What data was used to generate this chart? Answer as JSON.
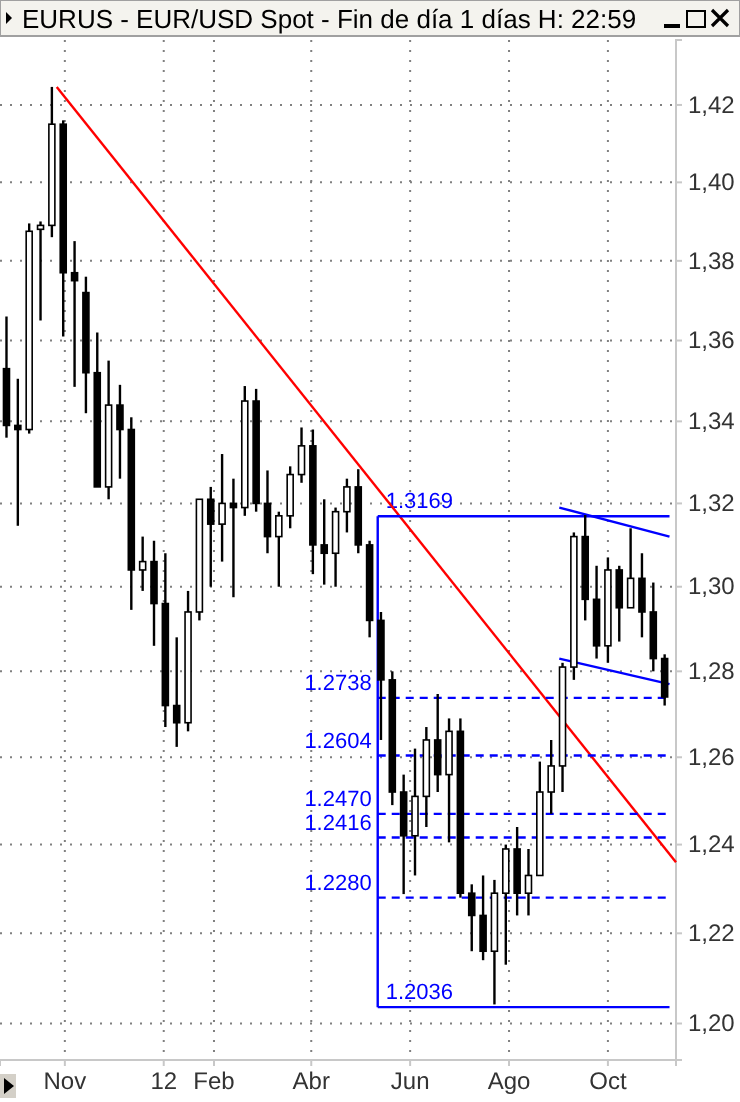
{
  "chart_data": {
    "type": "candlestick",
    "title": "EURUS - EUR/USD Spot - Fin de día 1 días H: 22:59",
    "color": "#000000",
    "x": [
      "2011-09-26",
      "2011-10-03",
      "2011-10-10",
      "2011-10-17",
      "2011-10-24",
      "2011-10-31",
      "2011-11-07",
      "2011-11-14",
      "2011-11-21",
      "2011-11-28",
      "2011-12-05",
      "2011-12-12",
      "2011-12-19",
      "2011-12-26",
      "2012-01-02",
      "2012-01-09",
      "2012-01-16",
      "2012-01-23",
      "2012-01-30",
      "2012-02-06",
      "2012-02-13",
      "2012-02-20",
      "2012-02-27",
      "2012-03-05",
      "2012-03-12",
      "2012-03-19",
      "2012-03-26",
      "2012-04-02",
      "2012-04-09",
      "2012-04-16",
      "2012-04-23",
      "2012-04-30",
      "2012-05-07",
      "2012-05-14",
      "2012-05-21",
      "2012-05-28",
      "2012-06-04",
      "2012-06-11",
      "2012-06-18",
      "2012-06-25",
      "2012-07-02",
      "2012-07-09",
      "2012-07-16",
      "2012-07-23",
      "2012-07-30",
      "2012-08-06",
      "2012-08-13",
      "2012-08-20",
      "2012-08-27",
      "2012-09-03",
      "2012-09-10",
      "2012-09-17",
      "2012-09-24",
      "2012-10-01",
      "2012-10-08",
      "2012-10-15",
      "2012-10-22",
      "2012-10-29",
      "2012-11-05"
    ],
    "ohlc": [
      [
        1.353,
        1.366,
        1.336,
        1.339
      ],
      [
        1.339,
        1.3505,
        1.3146,
        1.338
      ],
      [
        1.338,
        1.3895,
        1.337,
        1.3875
      ],
      [
        1.388,
        1.39,
        1.365,
        1.389
      ],
      [
        1.389,
        1.4247,
        1.386,
        1.415
      ],
      [
        1.415,
        1.416,
        1.361,
        1.377
      ],
      [
        1.377,
        1.385,
        1.3485,
        1.375
      ],
      [
        1.372,
        1.376,
        1.342,
        1.352
      ],
      [
        1.352,
        1.362,
        1.324,
        1.324
      ],
      [
        1.324,
        1.355,
        1.321,
        1.344
      ],
      [
        1.344,
        1.349,
        1.326,
        1.338
      ],
      [
        1.338,
        1.341,
        1.2945,
        1.304
      ],
      [
        1.304,
        1.312,
        1.299,
        1.306
      ],
      [
        1.306,
        1.311,
        1.286,
        1.296
      ],
      [
        1.296,
        1.308,
        1.267,
        1.272
      ],
      [
        1.272,
        1.288,
        1.2624,
        1.268
      ],
      [
        1.268,
        1.299,
        1.266,
        1.294
      ],
      [
        1.294,
        1.321,
        1.292,
        1.321
      ],
      [
        1.321,
        1.324,
        1.3,
        1.315
      ],
      [
        1.315,
        1.332,
        1.306,
        1.32
      ],
      [
        1.32,
        1.326,
        1.2975,
        1.319
      ],
      [
        1.319,
        1.3487,
        1.317,
        1.345
      ],
      [
        1.345,
        1.348,
        1.318,
        1.32
      ],
      [
        1.32,
        1.328,
        1.308,
        1.312
      ],
      [
        1.312,
        1.318,
        1.3,
        1.317
      ],
      [
        1.317,
        1.329,
        1.314,
        1.327
      ],
      [
        1.327,
        1.3385,
        1.325,
        1.334
      ],
      [
        1.334,
        1.338,
        1.303,
        1.31
      ],
      [
        1.31,
        1.321,
        1.3005,
        1.308
      ],
      [
        1.308,
        1.319,
        1.3,
        1.318
      ],
      [
        1.318,
        1.326,
        1.313,
        1.324
      ],
      [
        1.324,
        1.3283,
        1.308,
        1.31
      ],
      [
        1.31,
        1.311,
        1.288,
        1.292
      ],
      [
        1.292,
        1.294,
        1.264,
        1.278
      ],
      [
        1.278,
        1.28,
        1.249,
        1.252
      ],
      [
        1.252,
        1.256,
        1.2288,
        1.242
      ],
      [
        1.242,
        1.262,
        1.233,
        1.251
      ],
      [
        1.251,
        1.267,
        1.244,
        1.264
      ],
      [
        1.264,
        1.2747,
        1.252,
        1.256
      ],
      [
        1.256,
        1.269,
        1.2405,
        1.266
      ],
      [
        1.266,
        1.269,
        1.228,
        1.229
      ],
      [
        1.229,
        1.231,
        1.216,
        1.224
      ],
      [
        1.224,
        1.233,
        1.214,
        1.216
      ],
      [
        1.216,
        1.232,
        1.2042,
        1.229
      ],
      [
        1.229,
        1.24,
        1.213,
        1.239
      ],
      [
        1.239,
        1.244,
        1.224,
        1.229
      ],
      [
        1.229,
        1.239,
        1.224,
        1.233
      ],
      [
        1.233,
        1.259,
        1.233,
        1.252
      ],
      [
        1.252,
        1.264,
        1.247,
        1.258
      ],
      [
        1.258,
        1.282,
        1.252,
        1.281
      ],
      [
        1.281,
        1.313,
        1.278,
        1.312
      ],
      [
        1.312,
        1.3172,
        1.292,
        1.297
      ],
      [
        1.297,
        1.305,
        1.283,
        1.286
      ],
      [
        1.286,
        1.307,
        1.282,
        1.304
      ],
      [
        1.304,
        1.305,
        1.287,
        1.295
      ],
      [
        1.295,
        1.314,
        1.295,
        1.302
      ],
      [
        1.302,
        1.308,
        1.288,
        1.294
      ],
      [
        1.294,
        1.301,
        1.28,
        1.283
      ],
      [
        1.283,
        1.284,
        1.272,
        1.274
      ]
    ],
    "series": [
      {
        "type": "line",
        "color": "#ff0000",
        "line_style": "solid",
        "x": [
          "2011-10-27",
          "2012-11-12"
        ],
        "values": [
          1.4247,
          1.236
        ]
      },
      {
        "type": "line",
        "color": "#0000ff",
        "line_style": "solid",
        "x": [
          "2012-09-01",
          "2012-11-08"
        ],
        "values": [
          1.319,
          1.312
        ]
      },
      {
        "type": "line",
        "color": "#0000ff",
        "line_style": "solid",
        "x": [
          "2012-09-01",
          "2012-11-08"
        ],
        "values": [
          1.283,
          1.277
        ]
      },
      {
        "type": "line",
        "color": "#0000ff",
        "line_style": "solid",
        "x": [
          "2012-05-12",
          "2012-05-12"
        ],
        "values": [
          1.3169,
          1.2036
        ]
      },
      {
        "type": "line",
        "color": "#0000ff",
        "line_style": "solid",
        "x": [
          "2012-05-12",
          "2012-11-08"
        ],
        "values": [
          1.3169,
          1.3169
        ]
      },
      {
        "type": "line",
        "color": "#0000ff",
        "line_style": "dashed",
        "x": [
          "2012-05-12",
          "2012-11-08"
        ],
        "values": [
          1.2738,
          1.2738
        ]
      },
      {
        "type": "line",
        "color": "#0000ff",
        "line_style": "dashed",
        "x": [
          "2012-05-12",
          "2012-11-08"
        ],
        "values": [
          1.2604,
          1.2604
        ]
      },
      {
        "type": "line",
        "color": "#0000ff",
        "line_style": "dashed",
        "x": [
          "2012-05-12",
          "2012-11-08"
        ],
        "values": [
          1.247,
          1.247
        ]
      },
      {
        "type": "line",
        "color": "#0000ff",
        "line_style": "dashed",
        "x": [
          "2012-05-12",
          "2012-11-08"
        ],
        "values": [
          1.2416,
          1.2416
        ]
      },
      {
        "type": "line",
        "color": "#0000ff",
        "line_style": "dashed",
        "x": [
          "2012-05-12",
          "2012-11-08"
        ],
        "values": [
          1.228,
          1.228
        ]
      },
      {
        "type": "line",
        "color": "#0000ff",
        "line_style": "solid",
        "x": [
          "2012-05-12",
          "2012-11-08"
        ],
        "values": [
          1.2036,
          1.2036
        ]
      }
    ],
    "annotations": [
      {
        "text": "1.3169",
        "x": "2012-05-12",
        "y": 1.3169
      },
      {
        "text": "1.2738",
        "x": "2012-05-12",
        "y": 1.2738
      },
      {
        "text": "1.2604",
        "x": "2012-05-12",
        "y": 1.2604
      },
      {
        "text": "1.2470",
        "x": "2012-05-12",
        "y": 1.247
      },
      {
        "text": "1.2416",
        "x": "2012-05-12",
        "y": 1.2416
      },
      {
        "text": "1.2280",
        "x": "2012-05-12",
        "y": 1.228
      },
      {
        "text": "1.2036",
        "x": "2012-05-12",
        "y": 1.2036
      }
    ],
    "xlim": [
      "2011-09-22",
      "2012-11-12"
    ],
    "xticks": [
      {
        "value": "2011-11-01",
        "label": "Nov"
      },
      {
        "value": "2012-01-01",
        "label": "12"
      },
      {
        "value": "2012-02-01",
        "label": "Feb"
      },
      {
        "value": "2012-04-01",
        "label": "Abr"
      },
      {
        "value": "2012-06-01",
        "label": "Jun"
      },
      {
        "value": "2012-08-01",
        "label": "Ago"
      },
      {
        "value": "2012-10-01",
        "label": "Oct"
      }
    ],
    "ylim": [
      1.192,
      1.437
    ],
    "yticks": [
      {
        "value": 1.2,
        "label": "1,20"
      },
      {
        "value": 1.22,
        "label": "1,22"
      },
      {
        "value": 1.24,
        "label": "1,24"
      },
      {
        "value": 1.26,
        "label": "1,26"
      },
      {
        "value": 1.28,
        "label": "1,28"
      },
      {
        "value": 1.3,
        "label": "1,30"
      },
      {
        "value": 1.32,
        "label": "1,32"
      },
      {
        "value": 1.34,
        "label": "1,34"
      },
      {
        "value": 1.36,
        "label": "1,36"
      },
      {
        "value": 1.38,
        "label": "1,38"
      },
      {
        "value": 1.4,
        "label": "1,40"
      },
      {
        "value": 1.42,
        "label": "1,42"
      }
    ],
    "log": true,
    "grid": true,
    "marker": "none"
  }
}
